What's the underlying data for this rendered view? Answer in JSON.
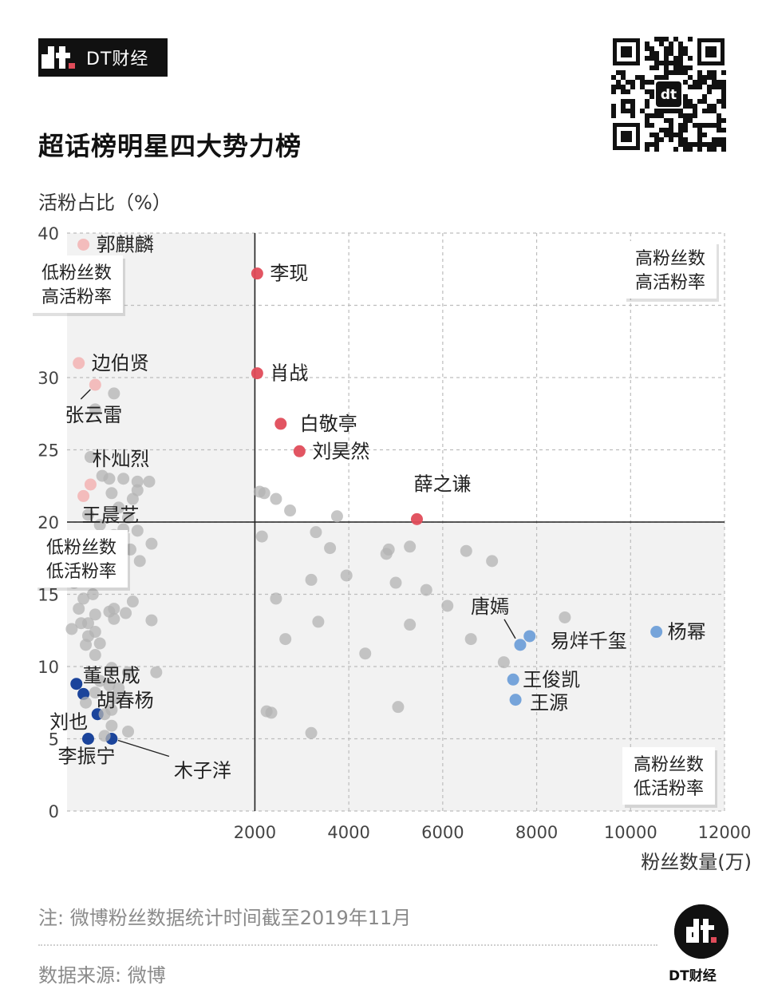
{
  "header": {
    "brand": "DT财经",
    "title": "超话榜明星四大势力榜"
  },
  "footer": {
    "note": "注: 微博粉丝数据统计时间截至2019年11月",
    "source": "数据来源: 微博",
    "brand": "DT财经"
  },
  "colors": {
    "gray": "#b3b3b3",
    "pink": "#f2b8b8",
    "red": "#e04c5a",
    "lightblue": "#6f9fd8",
    "navy": "#0f3a96",
    "quadrant_shade": "#f2f2f2"
  },
  "chart_data": {
    "type": "scatter",
    "ylabel": "活粉占比（%）",
    "xlabel": "粉丝数量(万)",
    "xlim": [
      -2000,
      12000
    ],
    "ylim": [
      0,
      40
    ],
    "x_ticks": [
      "2000",
      "4000",
      "6000",
      "8000",
      "10000",
      "12000"
    ],
    "y_ticks": [
      "0",
      "5",
      "10",
      "15",
      "20",
      "25",
      "30",
      "35",
      "40"
    ],
    "dividers": {
      "x": 2000,
      "y": 20
    },
    "grid": "dashed",
    "quadrants": [
      {
        "label": "低粉丝数\n高活粉率",
        "position": "top-left"
      },
      {
        "label": "高粉丝数\n高活粉率",
        "position": "top-right"
      },
      {
        "label": "低粉丝数\n低活粉率",
        "position": "middle-left"
      },
      {
        "label": "高粉丝数\n低活粉率",
        "position": "bottom-right"
      }
    ],
    "series": [
      {
        "group": "low-fans-high-active-faded",
        "color": "#f2b8b8",
        "points": [
          {
            "name": "郭麒麟",
            "x": -1650,
            "y": 39.2
          },
          {
            "name": "边伯贤",
            "x": -1750,
            "y": 31.0
          },
          {
            "name": "张云雷",
            "x": -1400,
            "y": 29.5
          },
          {
            "name": "朴灿烈",
            "x": -1500,
            "y": 22.6
          },
          {
            "name": "王晨艺",
            "x": -1650,
            "y": 21.8
          }
        ]
      },
      {
        "group": "high-active",
        "color": "#e04c5a",
        "points": [
          {
            "name": "李现",
            "x": 2050,
            "y": 37.2
          },
          {
            "name": "肖战",
            "x": 2050,
            "y": 30.3
          },
          {
            "name": "白敬亭",
            "x": 2550,
            "y": 26.8
          },
          {
            "name": "刘昊然",
            "x": 2950,
            "y": 24.9
          },
          {
            "name": "薛之谦",
            "x": 5450,
            "y": 20.2
          }
        ]
      },
      {
        "group": "high-fans",
        "color": "#6f9fd8",
        "points": [
          {
            "name": "杨幂",
            "x": 10550,
            "y": 12.4
          },
          {
            "name": "易烊千玺",
            "x": 7850,
            "y": 12.1
          },
          {
            "name": "唐嫣",
            "x": 7650,
            "y": 11.5
          },
          {
            "name": "王俊凯",
            "x": 7500,
            "y": 9.1
          },
          {
            "name": "王源",
            "x": 7550,
            "y": 7.7
          }
        ]
      },
      {
        "group": "low-fans-low-active",
        "color": "#0f3a96",
        "points": [
          {
            "name": "董思成",
            "x": -1800,
            "y": 8.8
          },
          {
            "name": "胡春杨",
            "x": -1650,
            "y": 8.1
          },
          {
            "name": "刘也",
            "x": -1350,
            "y": 6.7
          },
          {
            "name": "李振宁",
            "x": -1550,
            "y": 5.0
          },
          {
            "name": "木子洋",
            "x": -1050,
            "y": 5.0
          }
        ]
      },
      {
        "group": "others",
        "color": "#b3b3b3",
        "points": [
          [
            -1000,
            28.9
          ],
          [
            -1400,
            27.8
          ],
          [
            -1500,
            24.5
          ],
          [
            -1250,
            23.2
          ],
          [
            -1100,
            23.0
          ],
          [
            -800,
            23.0
          ],
          [
            -500,
            22.8
          ],
          [
            -1050,
            22.0
          ],
          [
            -600,
            21.6
          ],
          [
            -900,
            21.0
          ],
          [
            -700,
            20.3
          ],
          [
            -1300,
            19.8
          ],
          [
            -800,
            19.5
          ],
          [
            -1000,
            19.1
          ],
          [
            -500,
            19.4
          ],
          [
            -1200,
            18.6
          ],
          [
            -650,
            18.1
          ],
          [
            -1500,
            18.0
          ],
          [
            -850,
            17.6
          ],
          [
            -450,
            17.3
          ],
          [
            -1200,
            17.0
          ],
          [
            -900,
            16.6
          ],
          [
            -1050,
            16.2
          ],
          [
            -1400,
            15.9
          ],
          [
            -1850,
            15.8
          ],
          [
            -1650,
            14.7
          ],
          [
            -1450,
            15.0
          ],
          [
            -1750,
            14.0
          ],
          [
            -1400,
            13.6
          ],
          [
            -1100,
            13.8
          ],
          [
            -1000,
            13.3
          ],
          [
            -750,
            13.7
          ],
          [
            -1700,
            13.0
          ],
          [
            -1550,
            13.0
          ],
          [
            -1900,
            12.6
          ],
          [
            -1400,
            12.4
          ],
          [
            -1550,
            12.1
          ],
          [
            -1300,
            11.6
          ],
          [
            -1600,
            11.5
          ],
          [
            -1400,
            10.8
          ],
          [
            -1050,
            9.9
          ],
          [
            -700,
            9.6
          ],
          [
            -1100,
            8.7
          ],
          [
            -1400,
            8.2
          ],
          [
            -1000,
            7.8
          ],
          [
            -1600,
            7.5
          ],
          [
            -1050,
            7.0
          ],
          [
            -1200,
            6.7
          ],
          [
            -1050,
            5.9
          ],
          [
            -700,
            5.5
          ],
          [
            -1200,
            5.2
          ],
          [
            -900,
            8.5
          ],
          [
            -1300,
            9.0
          ],
          [
            -250,
            22.8
          ],
          [
            -500,
            22.2
          ],
          [
            -1550,
            20.5
          ],
          [
            -1250,
            18.0
          ],
          [
            -600,
            14.5
          ],
          [
            -1000,
            14.0
          ],
          [
            -200,
            13.2
          ],
          [
            -100,
            9.6
          ],
          [
            -200,
            18.5
          ],
          [
            2100,
            22.1
          ],
          [
            2200,
            22.0
          ],
          [
            2450,
            21.6
          ],
          [
            2750,
            20.8
          ],
          [
            3750,
            20.4
          ],
          [
            3300,
            19.3
          ],
          [
            2150,
            19.0
          ],
          [
            3600,
            18.2
          ],
          [
            4850,
            18.1
          ],
          [
            5300,
            18.3
          ],
          [
            4800,
            17.8
          ],
          [
            6500,
            18.0
          ],
          [
            7050,
            17.3
          ],
          [
            5000,
            15.8
          ],
          [
            3200,
            16.0
          ],
          [
            3950,
            16.3
          ],
          [
            5650,
            15.3
          ],
          [
            2450,
            14.7
          ],
          [
            6100,
            14.2
          ],
          [
            3350,
            13.1
          ],
          [
            5300,
            12.9
          ],
          [
            8600,
            13.4
          ],
          [
            2650,
            11.9
          ],
          [
            6600,
            11.9
          ],
          [
            4350,
            10.9
          ],
          [
            7300,
            10.3
          ],
          [
            2250,
            6.9
          ],
          [
            2350,
            6.8
          ],
          [
            5050,
            7.2
          ],
          [
            3200,
            5.4
          ]
        ]
      }
    ],
    "callouts": [
      {
        "name": "张云雷",
        "line": "pointer"
      },
      {
        "name": "唐嫣",
        "line": "pointer"
      },
      {
        "name": "木子洋",
        "line": "pointer"
      }
    ]
  }
}
